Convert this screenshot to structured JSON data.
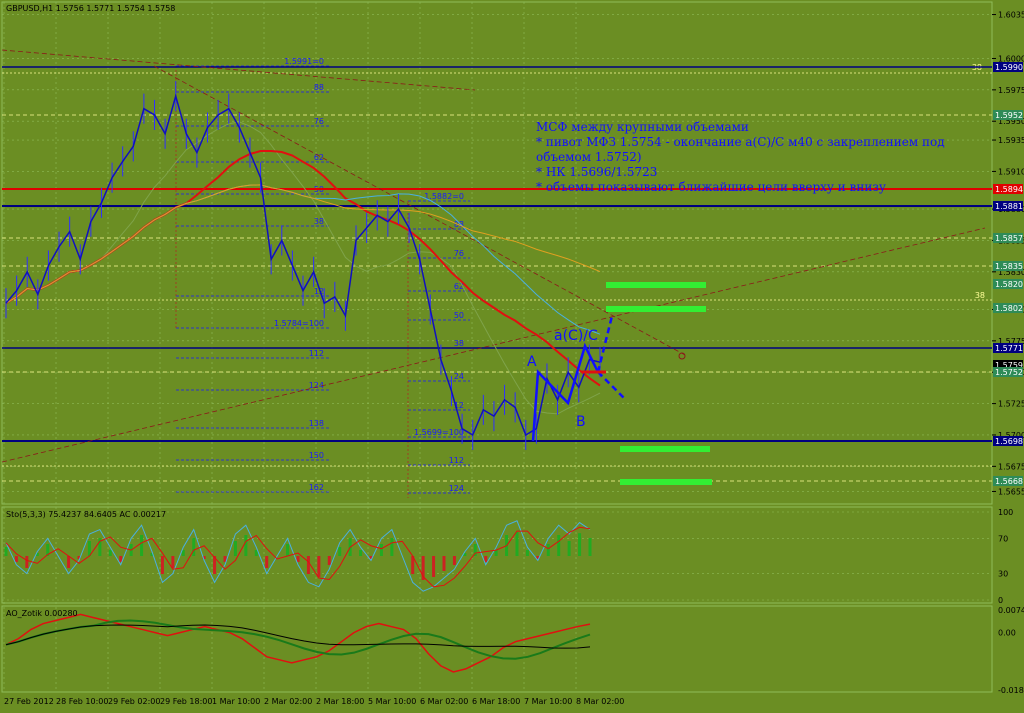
{
  "header": {
    "main_info": "GBPUSD,H1  1.5756 1.5771 1.5754 1.5758",
    "sto_info": "Sto(5,3,3) 75.4237 84.6405  AC 0.00217",
    "ao_info": "AO_Zotik 0.00280"
  },
  "annotation": {
    "lines": [
      "МСФ между крупными объемами",
      "* пивот МФЗ 1.5754 - окончание a(C)/C м40 с закреплением под",
      "объемом 1.5752)",
      "* НК 1.5696/1.5723",
      "* объемы показывают ближайшие цели вверху и внизу"
    ]
  },
  "wave_labels": {
    "a": "A",
    "b": "B",
    "ac": "a(C)/C"
  },
  "chart_data": [
    {
      "type": "line",
      "title": "GBPUSD,H1",
      "y_axis_ticks": [
        "1.6035",
        "1.6000",
        "1.5975",
        "1.5950",
        "1.5935",
        "1.5910",
        "1.5880",
        "1.5855",
        "1.5830",
        "1.5800",
        "1.5775",
        "1.5750",
        "1.5725",
        "1.5700",
        "1.5675",
        "1.5655"
      ],
      "ylim": [
        1.5645,
        1.6045
      ],
      "x_tick_labels": [
        "27 Feb 2012",
        "28 Feb 10:00",
        "29 Feb 02:00",
        "29 Feb 18:00",
        "1 Mar 10:00",
        "2 Mar 02:00",
        "2 Mar 18:00",
        "5 Mar 10:00",
        "6 Mar 02:00",
        "6 Mar 18:00",
        "7 Mar 10:00",
        "8 Mar 02:00"
      ],
      "price_tags": [
        {
          "value": "1.5990",
          "color": "#000080"
        },
        {
          "value": "1.5952",
          "color": "#2e8b57"
        },
        {
          "value": "1.5894",
          "color": "#e00000"
        },
        {
          "value": "1.5881",
          "color": "#000080"
        },
        {
          "value": "1.5857",
          "color": "#2e8b57"
        },
        {
          "value": "1.5835",
          "color": "#2e8b57"
        },
        {
          "value": "1.5820",
          "color": "#2e8b57"
        },
        {
          "value": "1.5802",
          "color": "#2e8b57"
        },
        {
          "value": "1.5771",
          "color": "#000080"
        },
        {
          "value": "1.5759",
          "color": "#000000"
        },
        {
          "value": "1.5752",
          "color": "#2e8b57"
        },
        {
          "value": "1.5698",
          "color": "#000080"
        },
        {
          "value": "1.5668",
          "color": "#2e8b57"
        }
      ],
      "fib_labels": [
        "1.5991=0",
        "88",
        "76",
        "62",
        "50",
        "38",
        "12",
        "1.5784=100",
        "112",
        "124",
        "138",
        "150",
        "162",
        "1.5882=0",
        "88",
        "76",
        "62",
        "50",
        "38",
        "24",
        "12",
        "1.5699=100",
        "112",
        "124",
        "38",
        "38"
      ],
      "series_close": [
        1.5805,
        1.5815,
        1.583,
        1.5812,
        1.5835,
        1.585,
        1.5862,
        1.584,
        1.587,
        1.5885,
        1.5905,
        1.5918,
        1.593,
        1.596,
        1.5955,
        1.594,
        1.597,
        1.594,
        1.5925,
        1.5945,
        1.5955,
        1.596,
        1.5945,
        1.5925,
        1.5905,
        1.584,
        1.5855,
        1.5835,
        1.5815,
        1.583,
        1.5805,
        1.581,
        1.5795,
        1.5855,
        1.5865,
        1.5875,
        1.587,
        1.588,
        1.5865,
        1.584,
        1.58,
        1.576,
        1.5735,
        1.5705,
        1.57,
        1.572,
        1.5715,
        1.5728,
        1.5722,
        1.57,
        1.5705,
        1.5745,
        1.5728,
        1.575,
        1.5738,
        1.576,
        1.5758
      ]
    },
    {
      "type": "line",
      "title": "Sto(5,3,3)",
      "y_axis_ticks": [
        "100",
        "70",
        "30",
        "0"
      ],
      "ylim": [
        0,
        100
      ],
      "main": [
        65,
        40,
        30,
        55,
        70,
        50,
        30,
        45,
        75,
        80,
        60,
        40,
        70,
        85,
        55,
        20,
        30,
        60,
        80,
        45,
        20,
        40,
        75,
        85,
        60,
        30,
        50,
        70,
        40,
        20,
        15,
        35,
        65,
        80,
        60,
        45,
        70,
        80,
        50,
        20,
        10,
        15,
        25,
        35,
        55,
        70,
        40,
        60,
        85,
        90,
        60,
        45,
        70,
        85,
        75,
        88,
        80
      ]
    },
    {
      "type": "line",
      "title": "AO_Zotik",
      "y_axis_ticks": [
        "0.00747",
        "0.00",
        "-0.01897"
      ],
      "ylim": [
        -0.01897,
        0.00747
      ],
      "main": [
        -0.004,
        -0.002,
        0.001,
        0.003,
        0.004,
        0.005,
        0.006,
        0.005,
        0.004,
        0.003,
        0.002,
        0.001,
        0.0,
        -0.001,
        0.0,
        0.001,
        0.002,
        0.001,
        0.0,
        -0.002,
        -0.005,
        -0.008,
        -0.009,
        -0.01,
        -0.009,
        -0.008,
        -0.006,
        -0.003,
        0.0,
        0.002,
        0.003,
        0.002,
        0.001,
        -0.002,
        -0.007,
        -0.011,
        -0.013,
        -0.012,
        -0.01,
        -0.008,
        -0.005,
        -0.003,
        -0.002,
        -0.001,
        0.0,
        0.001,
        0.002,
        0.0028
      ]
    }
  ]
}
